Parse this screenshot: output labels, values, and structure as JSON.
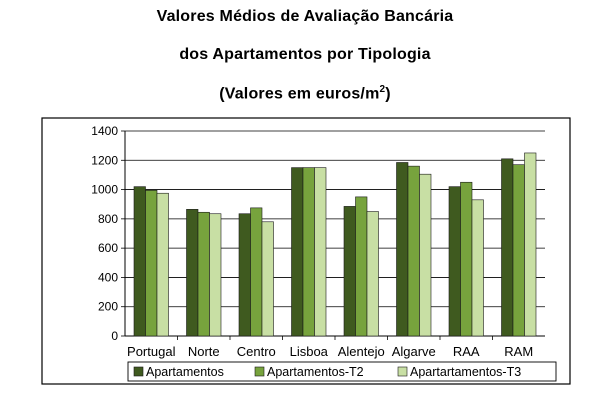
{
  "title_line1": "Valores Médios de Avaliação Bancária",
  "title_line2": "dos Apartamentos por Tipologia",
  "title_line3_main": "(Valores em euros/m",
  "title_line3_sup": "2",
  "title_line3_end": ")",
  "chart_data": {
    "type": "bar",
    "categories": [
      "Portugal",
      "Norte",
      "Centro",
      "Lisboa",
      "Alentejo",
      "Algarve",
      "RAA",
      "RAM"
    ],
    "series": [
      {
        "name": "Apartamentos",
        "color": "#3f5a1f",
        "values": [
          1020,
          865,
          835,
          1150,
          885,
          1185,
          1020,
          1210
        ]
      },
      {
        "name": "Apartamentos-T2",
        "color": "#77a33d",
        "values": [
          995,
          845,
          875,
          1150,
          950,
          1160,
          1050,
          1170
        ]
      },
      {
        "name": "Apartartamentos-T3",
        "color": "#c8dfa4",
        "values": [
          975,
          835,
          780,
          1150,
          850,
          1105,
          930,
          1250
        ]
      }
    ],
    "yticks": [
      0,
      200,
      400,
      600,
      800,
      1000,
      1200,
      1400
    ],
    "ylim": [
      0,
      1400
    ],
    "grid": true,
    "legend_position": "bottom"
  }
}
